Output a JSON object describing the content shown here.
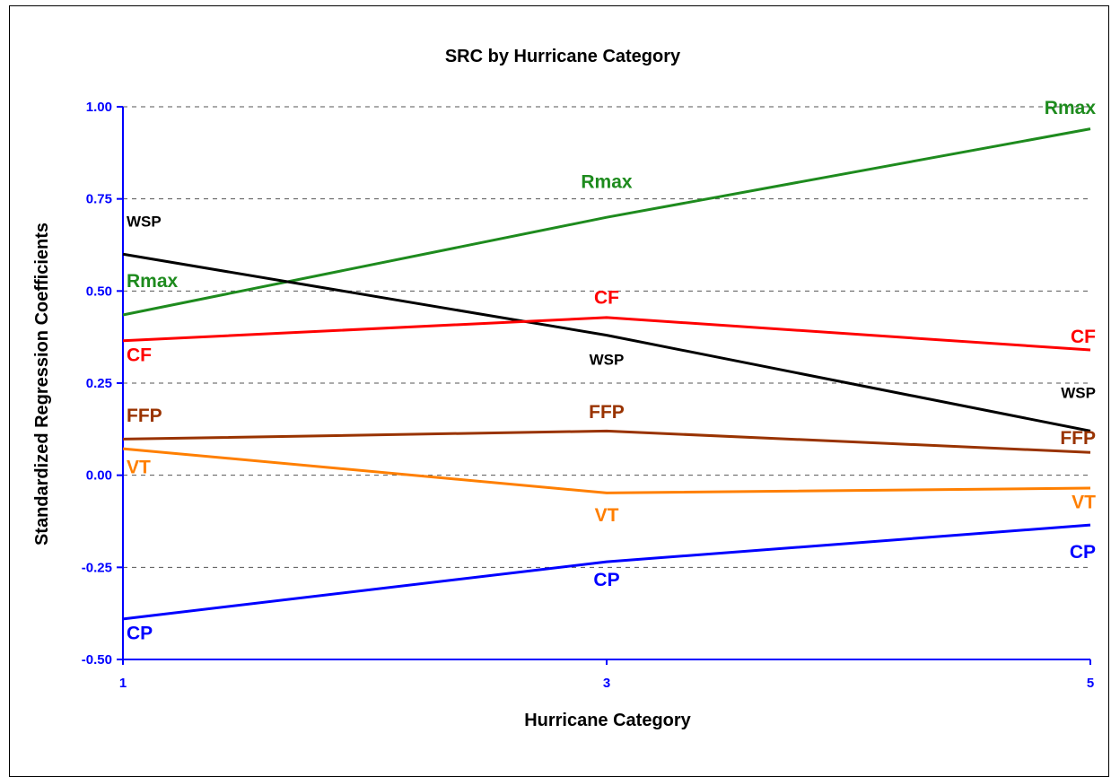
{
  "chart_data": {
    "type": "line",
    "title": "SRC by Hurricane Category",
    "xlabel": "Hurricane Category",
    "ylabel": "Standardized Regression Coefficients",
    "x": [
      1,
      3,
      5
    ],
    "x_ticks": [
      "1",
      "3",
      "5"
    ],
    "y_ticks": [
      "1.00",
      "0.75",
      "0.50",
      "0.25",
      "0.00",
      "-0.25",
      "-0.50"
    ],
    "ylim": [
      -0.5,
      1.0
    ],
    "grid": "horizontal-dashed",
    "axis_color": "#0000FF",
    "series": [
      {
        "name": "Rmax",
        "color": "#1E8B1E",
        "values": [
          0.435,
          0.7,
          0.94
        ],
        "labels": [
          {
            "x": 1,
            "y": 0.51
          },
          {
            "x": 3,
            "y": 0.78
          },
          {
            "x": 5,
            "y": 0.98
          }
        ]
      },
      {
        "name": "WSP",
        "color": "#000000",
        "values": [
          0.6,
          0.38,
          0.12
        ],
        "labels": [
          {
            "x": 1,
            "y": 0.675
          },
          {
            "x": 3,
            "y": 0.3
          },
          {
            "x": 5,
            "y": 0.21
          }
        ]
      },
      {
        "name": "CF",
        "color": "#FF0000",
        "values": [
          0.365,
          0.428,
          0.34
        ],
        "labels": [
          {
            "x": 1,
            "y": 0.31
          },
          {
            "x": 3,
            "y": 0.465
          },
          {
            "x": 5,
            "y": 0.36
          }
        ]
      },
      {
        "name": "FFP",
        "color": "#993300",
        "values": [
          0.098,
          0.12,
          0.062
        ],
        "labels": [
          {
            "x": 1,
            "y": 0.145
          },
          {
            "x": 3,
            "y": 0.155
          },
          {
            "x": 5,
            "y": 0.085
          }
        ]
      },
      {
        "name": "VT",
        "color": "#FF7F00",
        "values": [
          0.072,
          -0.048,
          -0.035
        ],
        "labels": [
          {
            "x": 1,
            "y": 0.005
          },
          {
            "x": 3,
            "y": -0.125
          },
          {
            "x": 5,
            "y": -0.09
          }
        ]
      },
      {
        "name": "CP",
        "color": "#0000FF",
        "values": [
          -0.39,
          -0.235,
          -0.135
        ],
        "labels": [
          {
            "x": 1,
            "y": -0.445
          },
          {
            "x": 3,
            "y": -0.3
          },
          {
            "x": 5,
            "y": -0.225
          }
        ]
      }
    ]
  }
}
